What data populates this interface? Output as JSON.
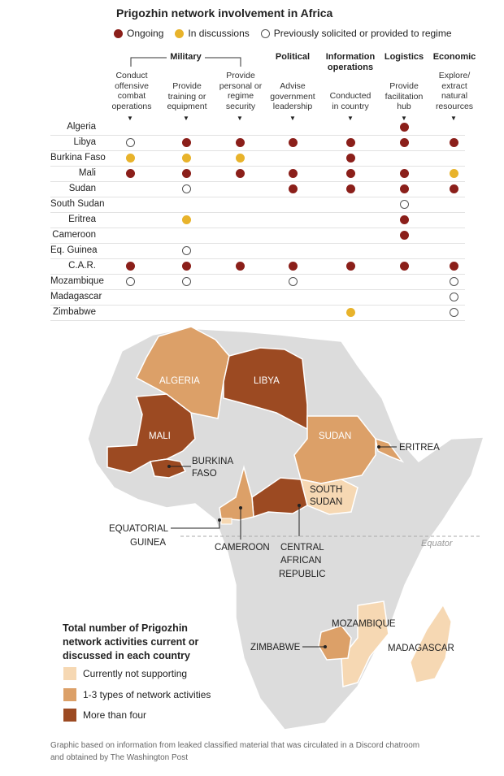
{
  "title": "Prigozhin network involvement in Africa",
  "legend": {
    "ongoing": "Ongoing",
    "discussions": "In discussions",
    "previous": "Previously solicited or provided to regime"
  },
  "categories": {
    "military": "Military",
    "political": "Political",
    "info": "Information operations",
    "logistics": "Logistics",
    "economic": "Economic"
  },
  "columns": [
    "Conduct offensive combat operations",
    "Provide training or equipment",
    "Provide personal or regime security",
    "Advise government leadership",
    "Conducted in country",
    "Provide facilitation hub",
    "Explore/ extract natural resources"
  ],
  "rows": [
    {
      "country": "Algeria",
      "cells": [
        "",
        "",
        "",
        "",
        "",
        "O",
        ""
      ]
    },
    {
      "country": "Libya",
      "cells": [
        "P",
        "O",
        "O",
        "O",
        "O",
        "O",
        "O"
      ]
    },
    {
      "country": "Burkina Faso",
      "cells": [
        "D",
        "D",
        "D",
        "",
        "O",
        "",
        ""
      ]
    },
    {
      "country": "Mali",
      "cells": [
        "O",
        "O",
        "O",
        "O",
        "O",
        "O",
        "D"
      ]
    },
    {
      "country": "Sudan",
      "cells": [
        "",
        "P",
        "",
        "O",
        "O",
        "O",
        "O"
      ]
    },
    {
      "country": "South Sudan",
      "cells": [
        "",
        "",
        "",
        "",
        "",
        "P",
        ""
      ]
    },
    {
      "country": "Eritrea",
      "cells": [
        "",
        "D",
        "",
        "",
        "",
        "O",
        ""
      ]
    },
    {
      "country": "Cameroon",
      "cells": [
        "",
        "",
        "",
        "",
        "",
        "O",
        ""
      ]
    },
    {
      "country": "Eq. Guinea",
      "cells": [
        "",
        "P",
        "",
        "",
        "",
        "",
        ""
      ]
    },
    {
      "country": "C.A.R.",
      "cells": [
        "O",
        "O",
        "O",
        "O",
        "O",
        "O",
        "O"
      ]
    },
    {
      "country": "Mozambique",
      "cells": [
        "P",
        "P",
        "",
        "P",
        "",
        "",
        "P"
      ]
    },
    {
      "country": "Madagascar",
      "cells": [
        "",
        "",
        "",
        "",
        "",
        "",
        "P"
      ]
    },
    {
      "country": "Zimbabwe",
      "cells": [
        "",
        "",
        "",
        "",
        "D",
        "",
        "P"
      ]
    }
  ],
  "map": {
    "labels": {
      "algeria": "ALGERIA",
      "libya": "LIBYA",
      "mali": "MALI",
      "sudan": "SUDAN",
      "eritrea": "ERITREA",
      "burkina_1": "BURKINA",
      "burkina_2": "FASO",
      "south_sudan_1": "SOUTH",
      "south_sudan_2": "SUDAN",
      "eq_guinea_1": "EQUATORIAL",
      "eq_guinea_2": "GUINEA",
      "cameroon": "CAMEROON",
      "car_1": "CENTRAL",
      "car_2": "AFRICAN",
      "car_3": "REPUBLIC",
      "equator": "Equator",
      "mozambique": "MOZAMBIQUE",
      "zimbabwe": "ZIMBABWE",
      "madagascar": "MADAGASCAR"
    },
    "scale": {
      "title": "Total number of Prigozhin network activities current or discussed in each country",
      "items": [
        {
          "label": "Currently not supporting",
          "color": "#f6d8b3"
        },
        {
          "label": "1-3 types of network activities",
          "color": "#dca068"
        },
        {
          "label": "More than four",
          "color": "#9c4a22"
        }
      ]
    }
  },
  "colors": {
    "ongoing": "#8b1f1a",
    "discussions": "#e8b32b",
    "land": "#dcdcdc",
    "light": "#f6d8b3",
    "medium": "#dca068",
    "dark": "#9c4a22"
  },
  "footnote": "Graphic based on information from leaked classified material that was circulated in a Discord chatroom and obtained by The Washington Post"
}
